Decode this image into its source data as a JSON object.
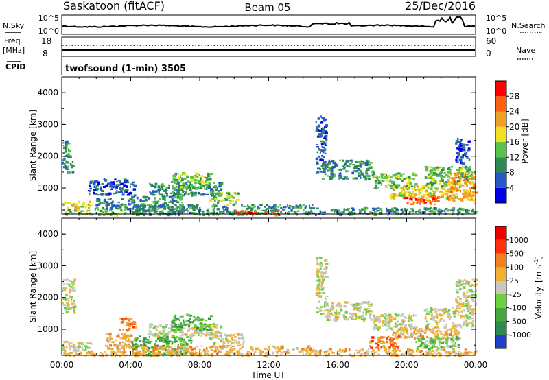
{
  "header": {
    "station": "Saskatoon (fitACF)",
    "beam": "Beam 05",
    "date": "25/Dec/2016"
  },
  "top_panels": {
    "nsky_label": "N.Sky",
    "nsearch_label": "N.Search",
    "noise_ticks_left": [
      "10^5",
      "10^0"
    ],
    "noise_ticks_right": [
      "10^5",
      "10^0"
    ],
    "freq_label": "Freq.",
    "freq_unit": "[MHz]",
    "freq_ticks": [
      "18",
      "8"
    ],
    "nave_label": "Nave",
    "nave_ticks": [
      "60",
      "0"
    ],
    "cpid_label": "CPID",
    "cpid_text": "twofsound (1-min) 3505"
  },
  "chart_data": [
    {
      "type": "heatmap",
      "title": "",
      "parameter": "Power",
      "ylabel": "Slant Range [km]",
      "ylim": [
        180,
        4500
      ],
      "yticks": [
        "1000",
        "2000",
        "3000",
        "4000"
      ],
      "xlabel": "",
      "xlim_hours": [
        0,
        24
      ],
      "colorbar": {
        "label": "Power [dB]",
        "tick_labels": [
          "4",
          "8",
          "12",
          "16",
          "20",
          "24",
          "28"
        ],
        "colors": [
          "#0000e6",
          "#2858c8",
          "#2f8a56",
          "#59c24a",
          "#f0e020",
          "#f0a020",
          "#ff6010",
          "#ff0000"
        ]
      },
      "regions": [
        {
          "t0": 0.0,
          "t1": 0.6,
          "r0": 1500,
          "r1": 2500,
          "level": 2
        },
        {
          "t0": 0.0,
          "t1": 1.7,
          "r0": 400,
          "r1": 600,
          "level": 4
        },
        {
          "t0": 0.0,
          "t1": 4.0,
          "r0": 180,
          "r1": 350,
          "level": 3
        },
        {
          "t0": 1.9,
          "t1": 4.2,
          "r0": 350,
          "r1": 700,
          "level": 2
        },
        {
          "t0": 1.5,
          "t1": 4.2,
          "r0": 800,
          "r1": 1300,
          "level": 1
        },
        {
          "t0": 4.0,
          "t1": 7.0,
          "r0": 200,
          "r1": 800,
          "level": 2
        },
        {
          "t0": 5.0,
          "t1": 9.2,
          "r0": 800,
          "r1": 1200,
          "level": 2
        },
        {
          "t0": 6.3,
          "t1": 8.6,
          "r0": 1000,
          "r1": 1500,
          "level": 3
        },
        {
          "t0": 8.5,
          "t1": 10.2,
          "r0": 500,
          "r1": 900,
          "level": 3
        },
        {
          "t0": 4.0,
          "t1": 14.5,
          "r0": 180,
          "r1": 500,
          "level": 2
        },
        {
          "t0": 10.0,
          "t1": 12.5,
          "r0": 180,
          "r1": 320,
          "level": 6
        },
        {
          "t0": 14.7,
          "t1": 15.3,
          "r0": 1500,
          "r1": 3300,
          "level": 1
        },
        {
          "t0": 15.0,
          "t1": 18.0,
          "r0": 1300,
          "r1": 1900,
          "level": 2
        },
        {
          "t0": 18.0,
          "t1": 20.5,
          "r0": 1000,
          "r1": 1500,
          "level": 3
        },
        {
          "t0": 19.0,
          "t1": 23.0,
          "r0": 700,
          "r1": 1100,
          "level": 4
        },
        {
          "t0": 19.8,
          "t1": 21.8,
          "r0": 500,
          "r1": 800,
          "level": 6
        },
        {
          "t0": 21.0,
          "t1": 23.8,
          "r0": 1100,
          "r1": 1700,
          "level": 3
        },
        {
          "t0": 22.3,
          "t1": 24.0,
          "r0": 600,
          "r1": 1500,
          "level": 5
        },
        {
          "t0": 22.8,
          "t1": 23.6,
          "r0": 1800,
          "r1": 2600,
          "level": 1
        },
        {
          "t0": 14.5,
          "t1": 24.0,
          "r0": 180,
          "r1": 400,
          "level": 2
        }
      ]
    },
    {
      "type": "heatmap",
      "title": "",
      "parameter": "Velocity",
      "ylabel": "Slant Range [km]",
      "ylim": [
        180,
        4500
      ],
      "yticks": [
        "1000",
        "2000",
        "3000",
        "4000"
      ],
      "xlabel": "Time UT",
      "xlim_hours": [
        0,
        24
      ],
      "xticks": [
        "00:00",
        "04:00",
        "08:00",
        "12:00",
        "16:00",
        "20:00",
        "00:00"
      ],
      "colorbar": {
        "label": "Velocity",
        "unit_label": "[m s",
        "unit_exponent": "-1",
        "unit_close": "]",
        "tick_labels": [
          "1000",
          "500",
          "100",
          "25",
          "-25",
          "-100",
          "-500",
          "-1000"
        ],
        "colors": [
          "#2040c8",
          "#2e8a4e",
          "#46a83a",
          "#6cd040",
          "#c8c8c0",
          "#f0b030",
          "#f08020",
          "#ff3010",
          "#ee0000"
        ]
      },
      "regions": [
        {
          "t0": 0.0,
          "t1": 0.7,
          "r0": 1500,
          "r1": 2600,
          "level": 4
        },
        {
          "t0": 0.0,
          "t1": 1.7,
          "r0": 350,
          "r1": 650,
          "level": 4
        },
        {
          "t0": 0.0,
          "t1": 4.0,
          "r0": 180,
          "r1": 350,
          "level": 5
        },
        {
          "t0": 2.5,
          "t1": 4.2,
          "r0": 350,
          "r1": 900,
          "level": 5
        },
        {
          "t0": 3.2,
          "t1": 4.2,
          "r0": 1000,
          "r1": 1400,
          "level": 6
        },
        {
          "t0": 4.0,
          "t1": 7.5,
          "r0": 200,
          "r1": 800,
          "level": 2
        },
        {
          "t0": 5.0,
          "t1": 9.2,
          "r0": 800,
          "r1": 1200,
          "level": 4
        },
        {
          "t0": 6.3,
          "t1": 8.6,
          "r0": 1000,
          "r1": 1500,
          "level": 2
        },
        {
          "t0": 8.5,
          "t1": 10.5,
          "r0": 500,
          "r1": 900,
          "level": 4
        },
        {
          "t0": 4.0,
          "t1": 14.5,
          "r0": 180,
          "r1": 500,
          "level": 5
        },
        {
          "t0": 14.7,
          "t1": 15.3,
          "r0": 1500,
          "r1": 3300,
          "level": 4
        },
        {
          "t0": 15.0,
          "t1": 18.0,
          "r0": 1300,
          "r1": 1900,
          "level": 4
        },
        {
          "t0": 18.0,
          "t1": 20.5,
          "r0": 1000,
          "r1": 1500,
          "level": 4
        },
        {
          "t0": 19.0,
          "t1": 23.0,
          "r0": 700,
          "r1": 1100,
          "level": 5
        },
        {
          "t0": 17.8,
          "t1": 19.5,
          "r0": 400,
          "r1": 800,
          "level": 6
        },
        {
          "t0": 20.5,
          "t1": 23.0,
          "r0": 400,
          "r1": 800,
          "level": 3
        },
        {
          "t0": 21.0,
          "t1": 23.8,
          "r0": 1100,
          "r1": 1700,
          "level": 4
        },
        {
          "t0": 22.8,
          "t1": 24.0,
          "r0": 1700,
          "r1": 2600,
          "level": 4
        },
        {
          "t0": 14.5,
          "t1": 24.0,
          "r0": 180,
          "r1": 400,
          "level": 5
        }
      ]
    }
  ]
}
